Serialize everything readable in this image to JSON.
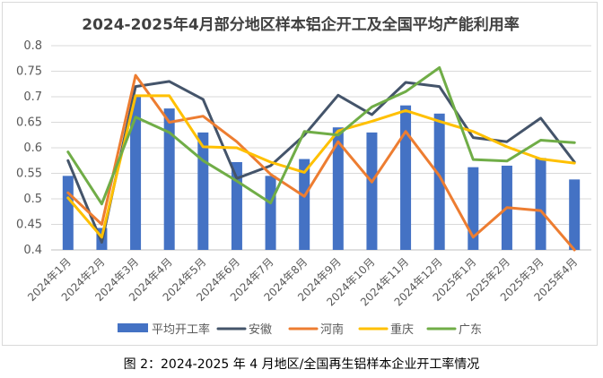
{
  "chart_data": {
    "type": "bar",
    "title": "2024-2025年4月部分地区样本铝企开工及全国平均产能利用率",
    "categories": [
      "2024年1月",
      "2024年2月",
      "2024年3月",
      "2024年4月",
      "2024年5月",
      "2024年6月",
      "2024年7月",
      "2024年8月",
      "2024年9月",
      "2024年10月",
      "2024年11月",
      "2024年12月",
      "2025年1月",
      "2025年2月",
      "2025年3月",
      "2025年4月"
    ],
    "ylim": [
      0.4,
      0.8
    ],
    "yticks": [
      0.4,
      0.45,
      0.5,
      0.55,
      0.6,
      0.65,
      0.7,
      0.75,
      0.8
    ],
    "ytick_labels": [
      "0.4",
      "0.45",
      "0.5",
      "0.55",
      "0.6",
      "0.65",
      "0.7",
      "0.75",
      "0.8"
    ],
    "grid": true,
    "legend_position": "bottom",
    "series": [
      {
        "name": "平均开工率",
        "kind": "bar",
        "color": "#4472c4",
        "values": [
          0.545,
          0.443,
          0.7,
          0.677,
          0.63,
          0.572,
          0.545,
          0.578,
          0.64,
          0.63,
          0.683,
          0.667,
          0.562,
          0.565,
          0.58,
          0.538
        ]
      },
      {
        "name": "安徽",
        "kind": "line",
        "color": "#44546a",
        "values": [
          0.575,
          0.415,
          0.72,
          0.73,
          0.695,
          0.54,
          0.565,
          0.625,
          0.703,
          0.665,
          0.728,
          0.72,
          0.62,
          0.612,
          0.658,
          0.572
        ]
      },
      {
        "name": "河南",
        "kind": "line",
        "color": "#ed7d31",
        "values": [
          0.512,
          0.45,
          0.742,
          0.65,
          0.662,
          0.612,
          0.548,
          0.505,
          0.612,
          0.533,
          0.632,
          0.545,
          0.425,
          0.483,
          0.477,
          0.4
        ]
      },
      {
        "name": "重庆",
        "kind": "line",
        "color": "#ffc000",
        "values": [
          0.502,
          0.425,
          0.702,
          0.702,
          0.602,
          0.6,
          0.572,
          0.552,
          0.633,
          0.652,
          0.673,
          0.652,
          0.632,
          0.602,
          0.578,
          0.57
        ]
      },
      {
        "name": "广东",
        "kind": "line",
        "color": "#70ad47",
        "values": [
          0.592,
          0.49,
          0.66,
          0.63,
          0.575,
          0.535,
          0.492,
          0.632,
          0.625,
          0.68,
          0.71,
          0.757,
          0.577,
          0.574,
          0.615,
          0.61
        ]
      }
    ]
  },
  "caption": "图 2：2024-2025 年 4 月地区/全国再生铝样本企业开工率情况"
}
